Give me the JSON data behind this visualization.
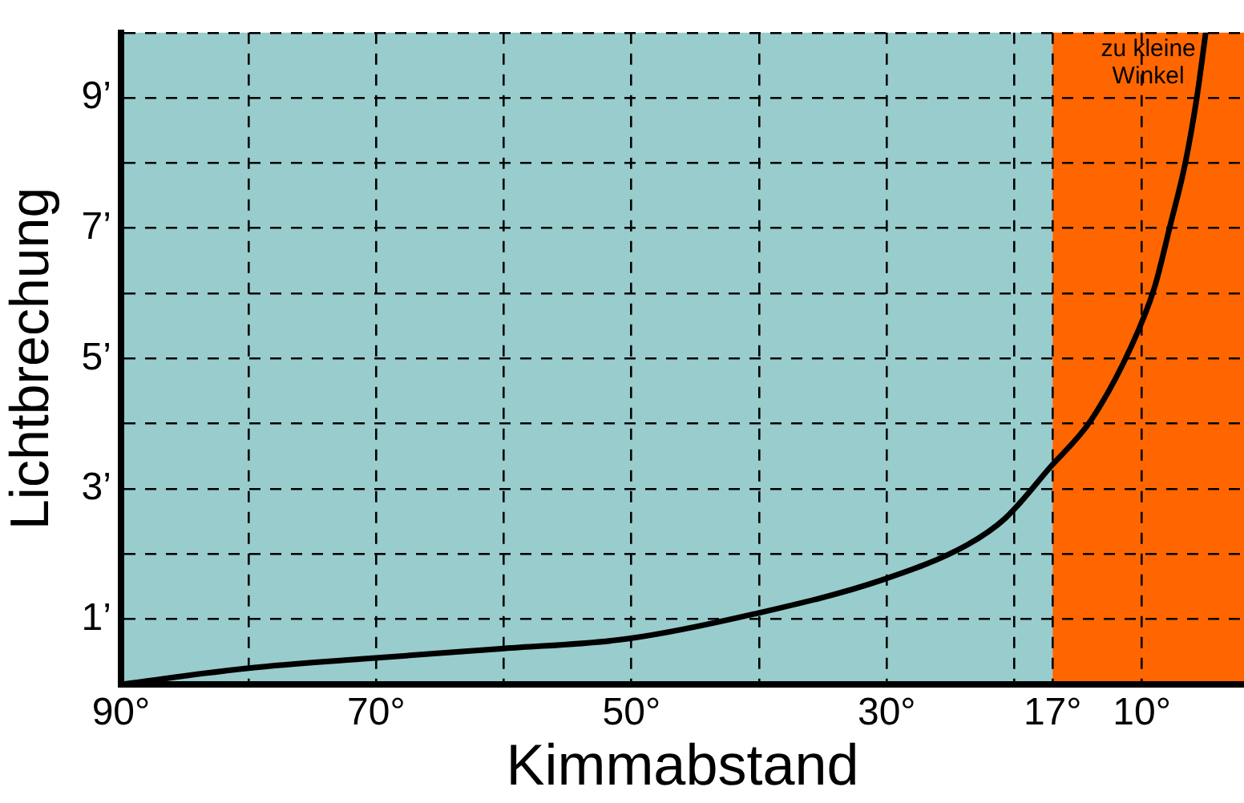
{
  "chart_data": {
    "type": "line",
    "xlabel": "Kimmabstand",
    "ylabel": "Lichtbrechung",
    "x": [
      90,
      80,
      70.5,
      60,
      50.3,
      40.4,
      30.4,
      23.7,
      20.7,
      17.2,
      14,
      10.8,
      9,
      7.8,
      6.6,
      5.7,
      5
    ],
    "series": [
      {
        "color": "#000000",
        "values": [
          0,
          0.25,
          0.4,
          0.55,
          0.7,
          1.08,
          1.6,
          2.14,
          2.55,
          3.33,
          4.05,
          5.2,
          6.1,
          7.03,
          8,
          9,
          10
        ]
      }
    ],
    "xlim": [
      90,
      2
    ],
    "ylim": [
      0,
      10
    ],
    "xticks": [
      {
        "value": 90,
        "label": "90°"
      },
      {
        "value": 80,
        "label": null
      },
      {
        "value": 70,
        "label": "70°"
      },
      {
        "value": 60,
        "label": null
      },
      {
        "value": 50,
        "label": "50°"
      },
      {
        "value": 40,
        "label": null
      },
      {
        "value": 30,
        "label": "30°"
      },
      {
        "value": 20,
        "label": null
      },
      {
        "value": 17,
        "label": "17°"
      },
      {
        "value": 10,
        "label": "10°"
      }
    ],
    "yticks": [
      {
        "value": 0,
        "label": null
      },
      {
        "value": 1,
        "label": "1’"
      },
      {
        "value": 2,
        "label": null
      },
      {
        "value": 3,
        "label": "3’"
      },
      {
        "value": 4,
        "label": null
      },
      {
        "value": 5,
        "label": "5’"
      },
      {
        "value": 6,
        "label": null
      },
      {
        "value": 7,
        "label": "7’"
      },
      {
        "value": 8,
        "label": null
      },
      {
        "value": 9,
        "label": "9’"
      },
      {
        "value": 10,
        "label": null
      }
    ],
    "bands": [
      {
        "axis": "x",
        "from": 90,
        "to": 17,
        "color": "#99cccc"
      },
      {
        "axis": "x",
        "from": 17,
        "to": 2,
        "color": "#ff6600",
        "label": "zu kleine Winkel"
      }
    ],
    "grid": true,
    "line_style": "solid",
    "marker": "none",
    "legend": false
  }
}
